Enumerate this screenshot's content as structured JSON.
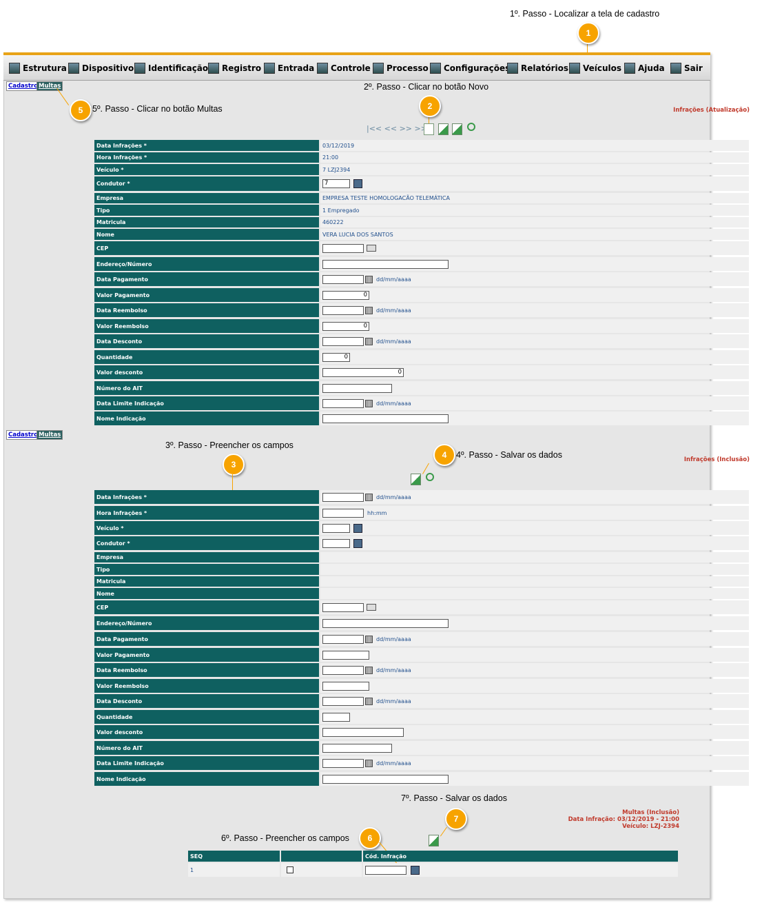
{
  "steps": {
    "s1": "1º. Passo - Localizar a tela de cadastro",
    "s2": "2º. Passo - Clicar no botão Novo",
    "s3": "3º. Passo - Preencher os campos",
    "s4": "4º. Passo - Salvar os dados",
    "s5": "5º. Passo - Clicar no botão Multas",
    "s6": "6º. Passo - Preencher os campos",
    "s7": "7º. Passo - Salvar os dados"
  },
  "badges": [
    "1",
    "2",
    "3",
    "4",
    "5",
    "6",
    "7"
  ],
  "menu": [
    "Estrutura",
    "Dispositivo",
    "Identificação",
    "Registro",
    "Entrada",
    "Controle",
    "Processo",
    "Configurações",
    "Relatórios",
    "Veículos",
    "Ajuda",
    "Sair"
  ],
  "tabs": {
    "cadastro": "Cadastro",
    "multas": "Multas"
  },
  "nav": {
    "glyphs": "|<< << >> >>|"
  },
  "form1": {
    "title": "Infrações (Atualização)",
    "rows": [
      {
        "label": "Data Infrações *",
        "value": "03/12/2019"
      },
      {
        "label": "Hora Infrações *",
        "value": "21:00"
      },
      {
        "label": "Veículo *",
        "value": "7 LZJ2394"
      },
      {
        "label": "Condutor *",
        "value": "7"
      },
      {
        "label": "Empresa",
        "value": "EMPRESA TESTE HOMOLOGACÃO TELEMÁTICA"
      },
      {
        "label": "Tipo",
        "value": "1 Empregado"
      },
      {
        "label": "Matricula",
        "value": "460222"
      },
      {
        "label": "Nome",
        "value": "VERA LUCIA DOS SANTOS"
      },
      {
        "label": "CEP",
        "value": ""
      },
      {
        "label": "Endereço/Número",
        "value": ""
      },
      {
        "label": "Data Pagamento",
        "value": "",
        "hint": "dd/mm/aaaa"
      },
      {
        "label": "Valor Pagamento",
        "value": "0"
      },
      {
        "label": "Data Reembolso",
        "value": "",
        "hint": "dd/mm/aaaa"
      },
      {
        "label": "Valor Reembolso",
        "value": "0"
      },
      {
        "label": "Data Desconto",
        "value": "",
        "hint": "dd/mm/aaaa"
      },
      {
        "label": "Quantidade",
        "value": "0"
      },
      {
        "label": "Valor desconto",
        "value": "0"
      },
      {
        "label": "Número do AIT",
        "value": ""
      },
      {
        "label": "Data Limite Indicação",
        "value": "",
        "hint": "dd/mm/aaaa"
      },
      {
        "label": "Nome Indicação",
        "value": ""
      }
    ]
  },
  "form2": {
    "title": "Infrações (Inclusão)",
    "rows": [
      {
        "label": "Data Infrações *",
        "hint": "dd/mm/aaaa"
      },
      {
        "label": "Hora Infrações *",
        "hint": "hh:mm"
      },
      {
        "label": "Veículo *"
      },
      {
        "label": "Condutor *"
      },
      {
        "label": "Empresa"
      },
      {
        "label": "Tipo"
      },
      {
        "label": "Matricula"
      },
      {
        "label": "Nome"
      },
      {
        "label": "CEP"
      },
      {
        "label": "Endereço/Número"
      },
      {
        "label": "Data Pagamento",
        "hint": "dd/mm/aaaa"
      },
      {
        "label": "Valor Pagamento"
      },
      {
        "label": "Data Reembolso",
        "hint": "dd/mm/aaaa"
      },
      {
        "label": "Valor Reembolso"
      },
      {
        "label": "Data Desconto",
        "hint": "dd/mm/aaaa"
      },
      {
        "label": "Quantidade"
      },
      {
        "label": "Valor desconto"
      },
      {
        "label": "Número do AIT"
      },
      {
        "label": "Data Limite Indicação",
        "hint": "dd/mm/aaaa"
      },
      {
        "label": "Nome Indicação"
      }
    ]
  },
  "multas": {
    "title_lines": [
      "Multas (Inclusão)",
      "Data Infração: 03/12/2019 - 21:00",
      "Veículo: LZJ-2394"
    ],
    "columns": [
      "SEQ",
      "",
      "Cód. Infração"
    ],
    "rows": [
      {
        "seq": "1"
      }
    ]
  }
}
